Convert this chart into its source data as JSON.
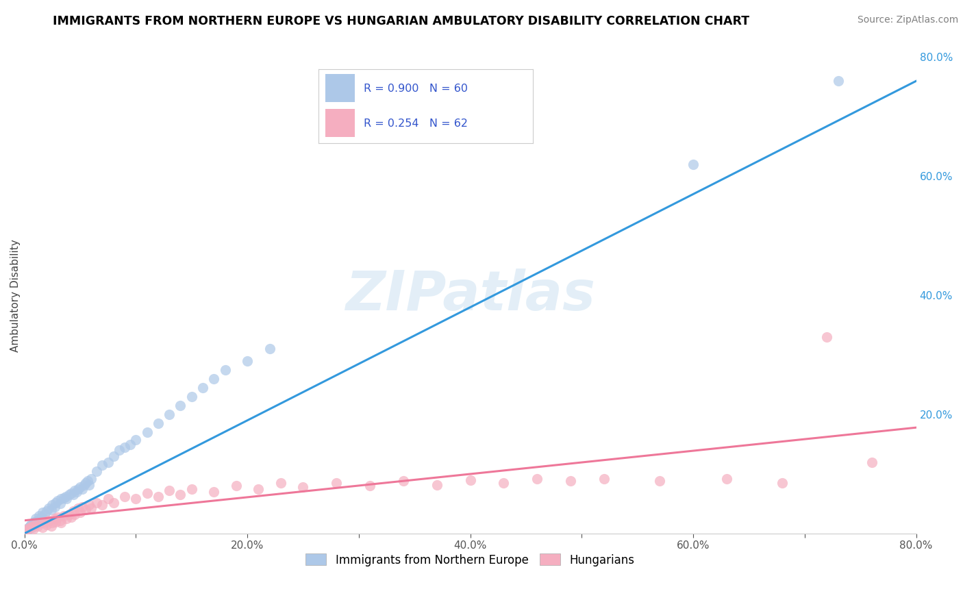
{
  "title": "IMMIGRANTS FROM NORTHERN EUROPE VS HUNGARIAN AMBULATORY DISABILITY CORRELATION CHART",
  "source": "Source: ZipAtlas.com",
  "ylabel": "Ambulatory Disability",
  "xlim": [
    0.0,
    0.8
  ],
  "ylim": [
    0.0,
    0.8
  ],
  "xtick_labels": [
    "0.0%",
    "",
    "20.0%",
    "",
    "40.0%",
    "",
    "60.0%",
    "",
    "80.0%"
  ],
  "xtick_vals": [
    0.0,
    0.1,
    0.2,
    0.3,
    0.4,
    0.5,
    0.6,
    0.7,
    0.8
  ],
  "right_ytick_labels": [
    "20.0%",
    "40.0%",
    "60.0%",
    "80.0%"
  ],
  "right_ytick_vals": [
    0.2,
    0.4,
    0.6,
    0.8
  ],
  "blue_R": 0.9,
  "blue_N": 60,
  "pink_R": 0.254,
  "pink_N": 62,
  "blue_color": "#adc8e8",
  "pink_color": "#f5aec0",
  "blue_line_color": "#3399dd",
  "pink_line_color": "#ee7799",
  "legend_text_color": "#3355cc",
  "watermark": "ZIPatlas",
  "blue_scatter": [
    [
      0.001,
      0.005
    ],
    [
      0.002,
      0.008
    ],
    [
      0.003,
      0.006
    ],
    [
      0.004,
      0.01
    ],
    [
      0.005,
      0.012
    ],
    [
      0.006,
      0.015
    ],
    [
      0.007,
      0.01
    ],
    [
      0.008,
      0.018
    ],
    [
      0.009,
      0.02
    ],
    [
      0.01,
      0.025
    ],
    [
      0.012,
      0.022
    ],
    [
      0.013,
      0.03
    ],
    [
      0.015,
      0.028
    ],
    [
      0.016,
      0.035
    ],
    [
      0.018,
      0.032
    ],
    [
      0.02,
      0.038
    ],
    [
      0.022,
      0.042
    ],
    [
      0.024,
      0.04
    ],
    [
      0.025,
      0.048
    ],
    [
      0.027,
      0.045
    ],
    [
      0.028,
      0.052
    ],
    [
      0.03,
      0.055
    ],
    [
      0.032,
      0.05
    ],
    [
      0.033,
      0.058
    ],
    [
      0.035,
      0.06
    ],
    [
      0.037,
      0.062
    ],
    [
      0.038,
      0.058
    ],
    [
      0.04,
      0.065
    ],
    [
      0.042,
      0.068
    ],
    [
      0.044,
      0.065
    ],
    [
      0.045,
      0.072
    ],
    [
      0.047,
      0.07
    ],
    [
      0.048,
      0.075
    ],
    [
      0.05,
      0.078
    ],
    [
      0.052,
      0.075
    ],
    [
      0.054,
      0.082
    ],
    [
      0.055,
      0.085
    ],
    [
      0.057,
      0.088
    ],
    [
      0.058,
      0.082
    ],
    [
      0.06,
      0.092
    ],
    [
      0.065,
      0.105
    ],
    [
      0.07,
      0.115
    ],
    [
      0.075,
      0.12
    ],
    [
      0.08,
      0.13
    ],
    [
      0.085,
      0.14
    ],
    [
      0.09,
      0.145
    ],
    [
      0.095,
      0.15
    ],
    [
      0.1,
      0.158
    ],
    [
      0.11,
      0.17
    ],
    [
      0.12,
      0.185
    ],
    [
      0.13,
      0.2
    ],
    [
      0.14,
      0.215
    ],
    [
      0.15,
      0.23
    ],
    [
      0.16,
      0.245
    ],
    [
      0.17,
      0.26
    ],
    [
      0.18,
      0.275
    ],
    [
      0.2,
      0.29
    ],
    [
      0.22,
      0.31
    ],
    [
      0.6,
      0.62
    ],
    [
      0.73,
      0.76
    ]
  ],
  "pink_scatter": [
    [
      0.001,
      0.005
    ],
    [
      0.002,
      0.006
    ],
    [
      0.003,
      0.008
    ],
    [
      0.005,
      0.01
    ],
    [
      0.007,
      0.012
    ],
    [
      0.008,
      0.008
    ],
    [
      0.01,
      0.015
    ],
    [
      0.012,
      0.012
    ],
    [
      0.015,
      0.018
    ],
    [
      0.016,
      0.01
    ],
    [
      0.018,
      0.02
    ],
    [
      0.02,
      0.015
    ],
    [
      0.022,
      0.022
    ],
    [
      0.024,
      0.012
    ],
    [
      0.025,
      0.018
    ],
    [
      0.027,
      0.025
    ],
    [
      0.028,
      0.02
    ],
    [
      0.03,
      0.028
    ],
    [
      0.032,
      0.022
    ],
    [
      0.033,
      0.018
    ],
    [
      0.035,
      0.03
    ],
    [
      0.038,
      0.025
    ],
    [
      0.04,
      0.032
    ],
    [
      0.042,
      0.028
    ],
    [
      0.044,
      0.038
    ],
    [
      0.045,
      0.032
    ],
    [
      0.048,
      0.042
    ],
    [
      0.05,
      0.035
    ],
    [
      0.052,
      0.045
    ],
    [
      0.055,
      0.04
    ],
    [
      0.058,
      0.048
    ],
    [
      0.06,
      0.042
    ],
    [
      0.065,
      0.052
    ],
    [
      0.07,
      0.048
    ],
    [
      0.075,
      0.058
    ],
    [
      0.08,
      0.052
    ],
    [
      0.09,
      0.062
    ],
    [
      0.1,
      0.058
    ],
    [
      0.11,
      0.068
    ],
    [
      0.12,
      0.062
    ],
    [
      0.13,
      0.072
    ],
    [
      0.14,
      0.065
    ],
    [
      0.15,
      0.075
    ],
    [
      0.17,
      0.07
    ],
    [
      0.19,
      0.08
    ],
    [
      0.21,
      0.075
    ],
    [
      0.23,
      0.085
    ],
    [
      0.25,
      0.078
    ],
    [
      0.28,
      0.085
    ],
    [
      0.31,
      0.08
    ],
    [
      0.34,
      0.088
    ],
    [
      0.37,
      0.082
    ],
    [
      0.4,
      0.09
    ],
    [
      0.43,
      0.085
    ],
    [
      0.46,
      0.092
    ],
    [
      0.49,
      0.088
    ],
    [
      0.52,
      0.092
    ],
    [
      0.57,
      0.088
    ],
    [
      0.63,
      0.092
    ],
    [
      0.68,
      0.085
    ],
    [
      0.72,
      0.33
    ],
    [
      0.76,
      0.12
    ]
  ]
}
